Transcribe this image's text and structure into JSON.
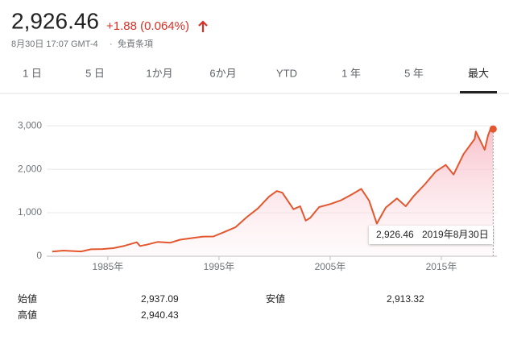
{
  "header": {
    "price": "2,926.46",
    "change": "+1.88 (0.064%)",
    "timestamp": "8月30日 17:07 GMT-4",
    "separator": "·",
    "disclaimer": "免責条項"
  },
  "tabs": {
    "items": [
      "1 日",
      "5 日",
      "1か月",
      "6か月",
      "YTD",
      "1 年",
      "5 年",
      "最大"
    ],
    "active": 7
  },
  "chart_data": {
    "type": "line",
    "color": "#e4572e",
    "x": [
      1980,
      1981,
      1982,
      1982.6,
      1983.5,
      1984.5,
      1985.5,
      1986.5,
      1987.6,
      1987.9,
      1988.5,
      1989.5,
      1990.6,
      1991.5,
      1992.5,
      1993.5,
      1994.5,
      1995.5,
      1996.5,
      1997.5,
      1998.5,
      1999.5,
      2000.2,
      2000.7,
      2001.7,
      2002.3,
      2002.8,
      2003.2,
      2004,
      2005,
      2006,
      2007,
      2007.8,
      2008.5,
      2009.2,
      2010,
      2011,
      2011.8,
      2012.5,
      2013.5,
      2014.5,
      2015.4,
      2016.1,
      2017,
      2018,
      2018.1,
      2018.9,
      2019.2,
      2019.5,
      2019.66
    ],
    "values": [
      108,
      130,
      115,
      110,
      160,
      165,
      185,
      240,
      320,
      235,
      265,
      330,
      310,
      380,
      415,
      450,
      455,
      560,
      670,
      900,
      1100,
      1370,
      1500,
      1460,
      1080,
      1150,
      820,
      880,
      1130,
      1200,
      1290,
      1430,
      1550,
      1280,
      750,
      1120,
      1330,
      1150,
      1380,
      1650,
      1950,
      2100,
      1880,
      2350,
      2700,
      2870,
      2450,
      2780,
      2980,
      2926.46
    ],
    "xlim": [
      1979.5,
      2020
    ],
    "ylim": [
      0,
      3300
    ],
    "xticks": [
      {
        "value": 1985,
        "label": "1985年"
      },
      {
        "value": 1995,
        "label": "1995年"
      },
      {
        "value": 2005,
        "label": "2005年"
      },
      {
        "value": 2015,
        "label": "2015年"
      }
    ],
    "yticks": [
      0,
      {
        "value": 1000,
        "label": "1,000"
      },
      {
        "value": 2000,
        "label": "2,000"
      },
      {
        "value": 3000,
        "label": "3,000"
      }
    ],
    "grid": true,
    "tooltip": {
      "value": "2,926.46",
      "date": "2019年8月30日"
    }
  },
  "stats": [
    {
      "label": "始値",
      "value": "2,937.09"
    },
    {
      "label": "安値",
      "value": "2,913.32"
    },
    {
      "label": "高値",
      "value": "2,940.43"
    }
  ]
}
